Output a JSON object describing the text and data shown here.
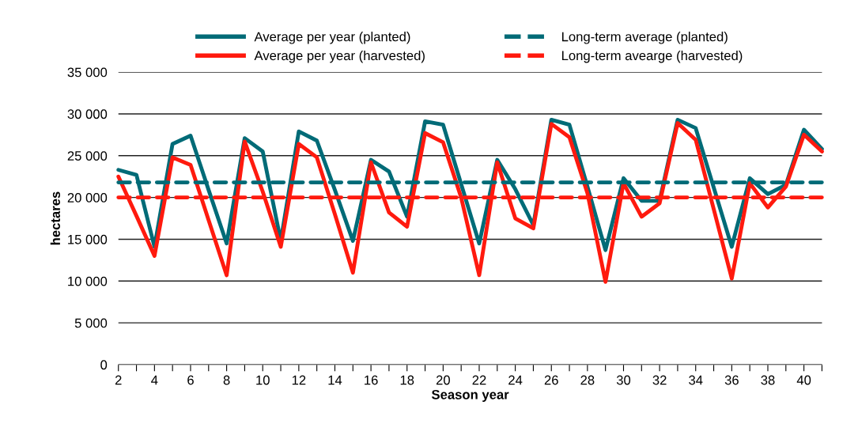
{
  "chart_data": {
    "type": "line",
    "xlabel": "Season year",
    "ylabel": "hectares",
    "x": [
      2,
      3,
      4,
      5,
      6,
      7,
      8,
      9,
      10,
      11,
      12,
      13,
      14,
      15,
      16,
      17,
      18,
      19,
      20,
      21,
      22,
      23,
      24,
      25,
      26,
      27,
      28,
      29,
      30,
      31,
      32,
      33,
      34,
      35,
      36,
      37,
      38,
      39,
      40,
      41
    ],
    "series": [
      {
        "name": "Average per year (planted)",
        "color": "#006b77",
        "line_style": "solid",
        "values": [
          23300,
          22700,
          14100,
          26400,
          27400,
          20900,
          14500,
          27100,
          25500,
          14800,
          27900,
          26800,
          20900,
          14800,
          24500,
          23100,
          17700,
          29100,
          28700,
          21600,
          14500,
          24500,
          21000,
          16700,
          29300,
          28700,
          21300,
          13700,
          22300,
          19600,
          19600,
          29300,
          28300,
          21200,
          14100,
          22300,
          20400,
          21500,
          28100,
          25800
        ]
      },
      {
        "name": "Average per year (harvested)",
        "color": "#ff1a0e",
        "line_style": "solid",
        "values": [
          22500,
          17800,
          13000,
          24800,
          23900,
          17300,
          10700,
          26700,
          20700,
          14100,
          26400,
          24800,
          18000,
          11000,
          24200,
          18200,
          16500,
          27700,
          26600,
          20000,
          10700,
          24200,
          17500,
          16300,
          28800,
          27200,
          20500,
          9900,
          21700,
          17700,
          19300,
          28900,
          26900,
          18600,
          10300,
          21700,
          18800,
          21300,
          27500,
          25500
        ]
      },
      {
        "name": "Long-term average (planted)",
        "color": "#006b77",
        "line_style": "dashed",
        "values": [
          21800,
          21800,
          21800,
          21800,
          21800,
          21800,
          21800,
          21800,
          21800,
          21800,
          21800,
          21800,
          21800,
          21800,
          21800,
          21800,
          21800,
          21800,
          21800,
          21800,
          21800,
          21800,
          21800,
          21800,
          21800,
          21800,
          21800,
          21800,
          21800,
          21800,
          21800,
          21800,
          21800,
          21800,
          21800,
          21800,
          21800,
          21800,
          21800,
          21800
        ]
      },
      {
        "name": "Long-term avearge (harvested)",
        "color": "#ff1a0e",
        "line_style": "dashed",
        "values": [
          20000,
          20000,
          20000,
          20000,
          20000,
          20000,
          20000,
          20000,
          20000,
          20000,
          20000,
          20000,
          20000,
          20000,
          20000,
          20000,
          20000,
          20000,
          20000,
          20000,
          20000,
          20000,
          20000,
          20000,
          20000,
          20000,
          20000,
          20000,
          20000,
          20000,
          20000,
          20000,
          20000,
          20000,
          20000,
          20000,
          20000,
          20000,
          20000,
          20000
        ]
      }
    ],
    "xlim": [
      2,
      41
    ],
    "xticks": [
      2,
      {
        "value": 3,
        "label": null
      },
      4,
      {
        "value": 5,
        "label": null
      },
      6,
      {
        "value": 7,
        "label": null
      },
      8,
      {
        "value": 9,
        "label": null
      },
      10,
      {
        "value": 11,
        "label": null
      },
      12,
      {
        "value": 13,
        "label": null
      },
      14,
      {
        "value": 15,
        "label": null
      },
      16,
      {
        "value": 17,
        "label": null
      },
      18,
      {
        "value": 19,
        "label": null
      },
      20,
      {
        "value": 21,
        "label": null
      },
      22,
      {
        "value": 23,
        "label": null
      },
      24,
      {
        "value": 25,
        "label": null
      },
      26,
      {
        "value": 27,
        "label": null
      },
      28,
      {
        "value": 29,
        "label": null
      },
      30,
      {
        "value": 31,
        "label": null
      },
      32,
      {
        "value": 33,
        "label": null
      },
      34,
      {
        "value": 35,
        "label": null
      },
      36,
      {
        "value": 37,
        "label": null
      },
      38,
      {
        "value": 39,
        "label": null
      },
      40,
      {
        "value": 41,
        "label": null
      }
    ],
    "ylim": [
      0,
      35000
    ],
    "yticks": [
      0,
      {
        "value": 5000,
        "label": "5 000"
      },
      {
        "value": 10000,
        "label": "10 000"
      },
      {
        "value": 15000,
        "label": "15 000"
      },
      {
        "value": 20000,
        "label": "20 000"
      },
      {
        "value": 25000,
        "label": "25 000"
      },
      {
        "value": 30000,
        "label": "30 000"
      },
      {
        "value": 35000,
        "label": "35 000"
      }
    ],
    "grid": "y",
    "legend": "top",
    "marker": "none"
  }
}
